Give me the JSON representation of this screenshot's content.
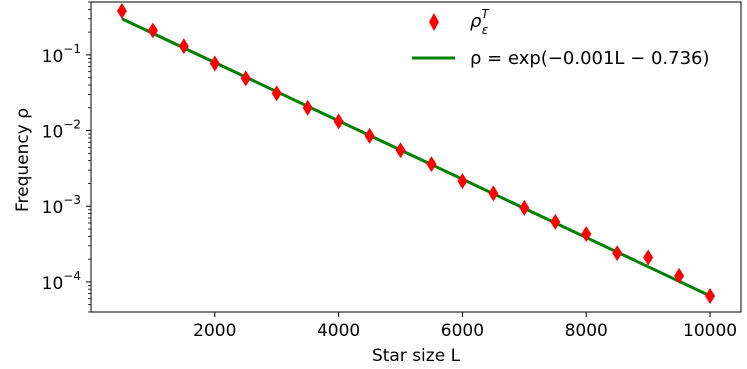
{
  "chart_data": {
    "type": "scatter",
    "xlabel": "Star size L",
    "ylabel": "Frequency ρ",
    "xlim": [
      0,
      10500
    ],
    "ylim": [
      4e-05,
      0.5
    ],
    "y_scale": "log",
    "x_ticks": [
      2000,
      4000,
      6000,
      8000,
      10000
    ],
    "x_tick_labels": [
      "2000",
      "4000",
      "6000",
      "8000",
      "10000"
    ],
    "y_ticks": [
      0.1,
      0.01,
      0.001,
      0.0001
    ],
    "y_tick_labels": [
      {
        "base": "10",
        "exp": "−1"
      },
      {
        "base": "10",
        "exp": "−2"
      },
      {
        "base": "10",
        "exp": "−3"
      },
      {
        "base": "10",
        "exp": "−4"
      }
    ],
    "grid": false,
    "legend_position": "top-right",
    "series": [
      {
        "name": "ρ_ε^T",
        "kind": "scatter",
        "marker": "diamond",
        "color": "#ff0000",
        "x": [
          500,
          1000,
          1500,
          2000,
          2500,
          3000,
          3500,
          4000,
          4500,
          5000,
          5500,
          6000,
          6500,
          7000,
          7500,
          8000,
          8500,
          9000,
          9500,
          10000
        ],
        "y": [
          0.38,
          0.21,
          0.13,
          0.077,
          0.049,
          0.031,
          0.02,
          0.0132,
          0.0085,
          0.0055,
          0.0036,
          0.00215,
          0.00148,
          0.00095,
          0.00062,
          0.00043,
          0.00024,
          0.00021,
          0.00012,
          6.5e-05
        ]
      },
      {
        "name": "ρ = exp(−0.001L − 0.736)",
        "kind": "line",
        "color": "#008000",
        "x": [
          500,
          10000
        ],
        "y": [
          0.3,
          6.54e-05
        ]
      }
    ]
  },
  "legend": {
    "scatter_label": {
      "main": "ρ",
      "sub": "ε",
      "sup": "T"
    },
    "line_label": "ρ = exp(−0.001L − 0.736)"
  }
}
